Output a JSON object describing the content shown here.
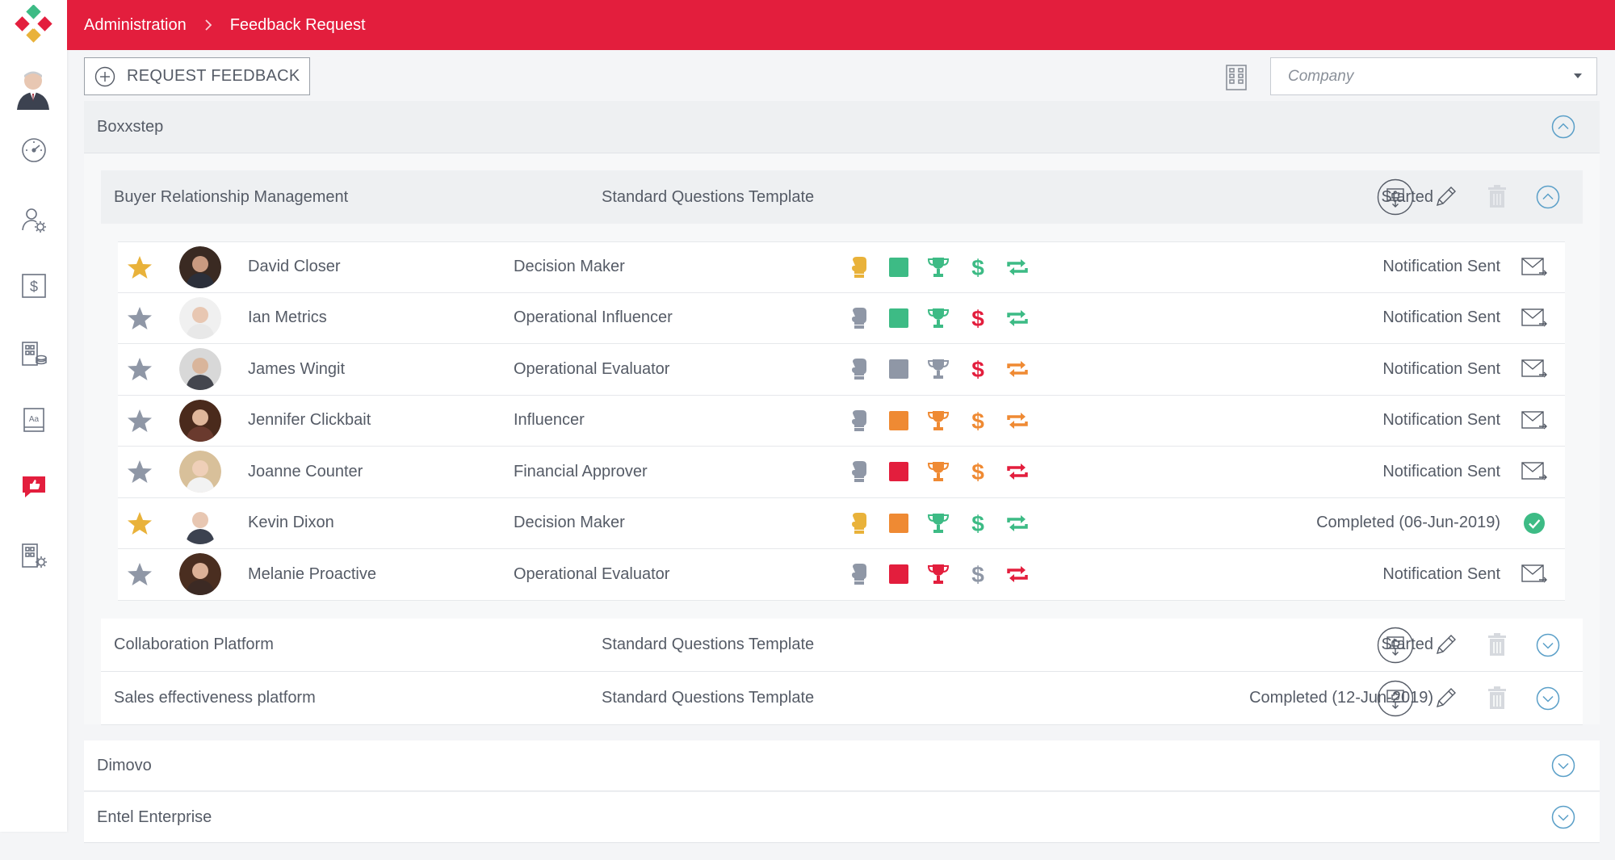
{
  "app": {
    "brand_colors": {
      "primary": "#e31e3d",
      "green": "#3dbb85",
      "gold": "#e9b23a",
      "orange": "#ef8a33",
      "red": "#e31e3d",
      "grey": "#8f97a6"
    }
  },
  "sidebar": {
    "items": [
      {
        "icon": "speedometer-icon"
      },
      {
        "icon": "user-settings-icon"
      },
      {
        "icon": "dollar-icon"
      },
      {
        "icon": "building-coins-icon"
      },
      {
        "icon": "glossary-icon"
      },
      {
        "icon": "feedback-icon",
        "active": true
      },
      {
        "icon": "building-settings-icon"
      }
    ]
  },
  "header": {
    "breadcrumb": [
      "Administration",
      "Feedback Request"
    ]
  },
  "toolbar": {
    "request_label": "REQUEST FEEDBACK",
    "company_placeholder": "Company"
  },
  "groups": [
    {
      "name": "Boxxstep",
      "expanded": true
    },
    {
      "name": "Dimovo",
      "expanded": false
    },
    {
      "name": "Entel Enterprise",
      "expanded": false
    }
  ],
  "projects": [
    {
      "name": "Buyer Relationship Management",
      "template": "Standard Questions Template",
      "status": "Started",
      "expanded": true
    },
    {
      "name": "Collaboration Platform",
      "template": "Standard Questions Template",
      "status": "Started",
      "expanded": false
    },
    {
      "name": "Sales effectiveness platform",
      "template": "Standard Questions Template",
      "status": "Completed (12-Jun-2019)",
      "expanded": false
    }
  ],
  "stakeholders": [
    {
      "name": "David Closer",
      "role": "Decision Maker",
      "starred": true,
      "indicators": [
        "gold",
        "green",
        "green",
        "green",
        "green"
      ],
      "status": "Notification Sent",
      "action": "envelope"
    },
    {
      "name": "Ian Metrics",
      "role": "Operational Influencer",
      "starred": false,
      "indicators": [
        "grey",
        "green",
        "green",
        "red",
        "green"
      ],
      "status": "Notification Sent",
      "action": "envelope"
    },
    {
      "name": "James Wingit",
      "role": "Operational Evaluator",
      "starred": false,
      "indicators": [
        "grey",
        "grey",
        "grey",
        "red",
        "orange"
      ],
      "status": "Notification Sent",
      "action": "envelope"
    },
    {
      "name": "Jennifer Clickbait",
      "role": "Influencer",
      "starred": false,
      "indicators": [
        "grey",
        "orange",
        "orange",
        "orange",
        "orange"
      ],
      "status": "Notification Sent",
      "action": "envelope"
    },
    {
      "name": "Joanne Counter",
      "role": "Financial Approver",
      "starred": false,
      "indicators": [
        "grey",
        "red",
        "orange",
        "orange",
        "red"
      ],
      "status": "Notification Sent",
      "action": "envelope"
    },
    {
      "name": "Kevin Dixon",
      "role": "Decision Maker",
      "starred": true,
      "indicators": [
        "gold",
        "orange",
        "green",
        "green",
        "green"
      ],
      "status": "Completed (06-Jun-2019)",
      "action": "check"
    },
    {
      "name": "Melanie Proactive",
      "role": "Operational Evaluator",
      "starred": false,
      "indicators": [
        "grey",
        "red",
        "red",
        "grey",
        "red"
      ],
      "status": "Notification Sent",
      "action": "envelope"
    }
  ]
}
